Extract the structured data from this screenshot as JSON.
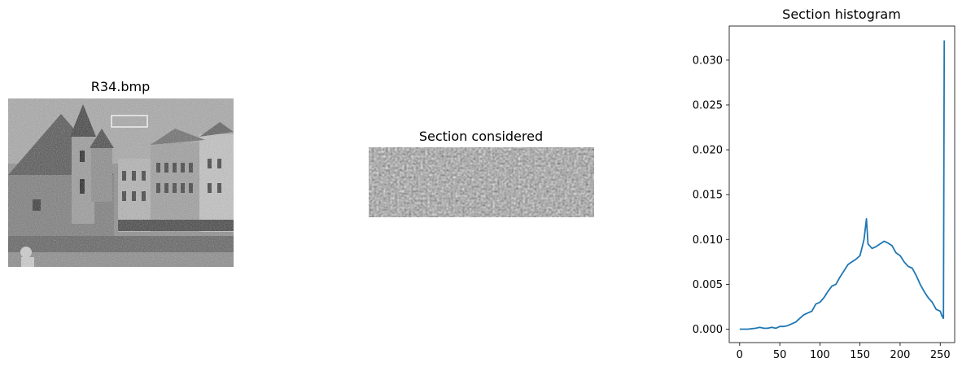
{
  "panels": [
    {
      "title": "R34.bmp",
      "kind": "image",
      "content": "noisy-grayscale-photo-of-old-town-canal-buildings"
    },
    {
      "title": "Section considered",
      "kind": "image",
      "content": "noisy-grayscale-crop"
    },
    {
      "title": "Section histogram",
      "kind": "chart"
    }
  ],
  "colors": {
    "line": "#1f77b4",
    "selection_box": "#ffffff"
  },
  "chart_data": {
    "type": "line",
    "title": "Section histogram",
    "xlabel": "",
    "ylabel": "",
    "xlim": [
      -13,
      268
    ],
    "ylim": [
      -0.0015,
      0.0338
    ],
    "xticks": [
      0,
      50,
      100,
      150,
      200,
      250
    ],
    "yticks": [
      0.0,
      0.005,
      0.01,
      0.015,
      0.02,
      0.025,
      0.03
    ],
    "ytick_labels": [
      "0.000",
      "0.005",
      "0.010",
      "0.015",
      "0.020",
      "0.025",
      "0.030"
    ],
    "grid": false,
    "series": [
      {
        "x": [
          0,
          10,
          20,
          25,
          30,
          35,
          40,
          45,
          50,
          55,
          60,
          65,
          70,
          75,
          80,
          85,
          90,
          95,
          100,
          105,
          110,
          115,
          120,
          125,
          130,
          135,
          140,
          145,
          150,
          155,
          158,
          160,
          165,
          170,
          175,
          180,
          185,
          190,
          195,
          200,
          205,
          210,
          215,
          220,
          225,
          230,
          235,
          240,
          245,
          250,
          252,
          254,
          255
        ],
        "y": [
          0.0,
          0.0,
          0.0001,
          0.0002,
          0.0001,
          0.0001,
          0.0002,
          0.0001,
          0.0003,
          0.0003,
          0.0004,
          0.0006,
          0.0008,
          0.0012,
          0.0016,
          0.0018,
          0.002,
          0.0028,
          0.003,
          0.0035,
          0.0042,
          0.0048,
          0.005,
          0.0058,
          0.0065,
          0.0072,
          0.0075,
          0.0078,
          0.0082,
          0.01,
          0.0123,
          0.0095,
          0.009,
          0.0092,
          0.0095,
          0.0098,
          0.0096,
          0.0093,
          0.0085,
          0.0082,
          0.0075,
          0.007,
          0.0068,
          0.006,
          0.005,
          0.0042,
          0.0035,
          0.003,
          0.0022,
          0.002,
          0.0015,
          0.0012,
          0.0322
        ]
      }
    ]
  }
}
